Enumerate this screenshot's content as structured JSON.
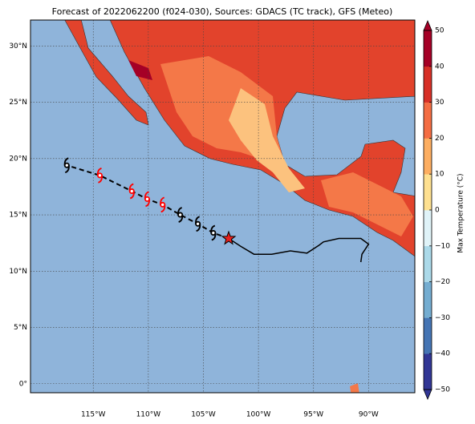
{
  "chart_data": {
    "type": "map",
    "title": "Forecast of 2022062200 (f024-030), Sources: GDACS (TC track), GFS (Meteo)",
    "colorbar_label": "Max Temperature (°C)",
    "xlim": [
      -120.7,
      -85.8
    ],
    "ylim": [
      -0.8,
      32.3
    ],
    "xticks": [
      {
        "value": -115,
        "label": "115°W"
      },
      {
        "value": -110,
        "label": "110°W"
      },
      {
        "value": -105,
        "label": "105°W"
      },
      {
        "value": -100,
        "label": "100°W"
      },
      {
        "value": -95,
        "label": "95°W"
      },
      {
        "value": -90,
        "label": "90°W"
      }
    ],
    "yticks": [
      {
        "value": 0,
        "label": "0°"
      },
      {
        "value": 5,
        "label": "5°N"
      },
      {
        "value": 10,
        "label": "10°N"
      },
      {
        "value": 15,
        "label": "15°N"
      },
      {
        "value": 20,
        "label": "20°N"
      },
      {
        "value": 25,
        "label": "25°N"
      },
      {
        "value": 30,
        "label": "30°N"
      }
    ],
    "grid": true,
    "colorbar": {
      "lim": [
        -50,
        50
      ],
      "ticks": [
        {
          "value": -50,
          "label": "−50"
        },
        {
          "value": -40,
          "label": "−40"
        },
        {
          "value": -30,
          "label": "−30"
        },
        {
          "value": -20,
          "label": "−20"
        },
        {
          "value": -10,
          "label": "−10"
        },
        0,
        10,
        20,
        30,
        40,
        50
      ],
      "colors": [
        "#313695",
        "#4575b4",
        "#74add1",
        "#abd9e9",
        "#e0f3f8",
        "#fee090",
        "#fdae61",
        "#f46d43",
        "#d73027",
        "#a50026"
      ]
    },
    "current_position": {
      "lon": -102.7,
      "lat": 12.9,
      "color": "#e8201c"
    },
    "forecast_track": {
      "lon": [
        -104.1,
        -105.5,
        -107.1,
        -108.7,
        -110.1,
        -111.5,
        -114.4,
        -117.4
      ],
      "lat": [
        13.4,
        14.2,
        15.0,
        15.9,
        16.4,
        17.1,
        18.5,
        19.4
      ],
      "colors": [
        "#000000",
        "#000000",
        "#000000",
        "#ff0000",
        "#ff0000",
        "#ff0000",
        "#ff0000",
        "#000000"
      ]
    },
    "past_track": {
      "lon": [
        -102.7,
        -101.6,
        -100.4,
        -98.8,
        -97.1,
        -95.6,
        -94.5,
        -94.1,
        -92.7,
        -90.7,
        -90.0,
        -90.6,
        -90.7
      ],
      "lat": [
        12.9,
        12.2,
        11.5,
        11.5,
        11.8,
        11.6,
        12.3,
        12.6,
        12.9,
        12.9,
        12.4,
        11.5,
        10.8
      ]
    }
  }
}
